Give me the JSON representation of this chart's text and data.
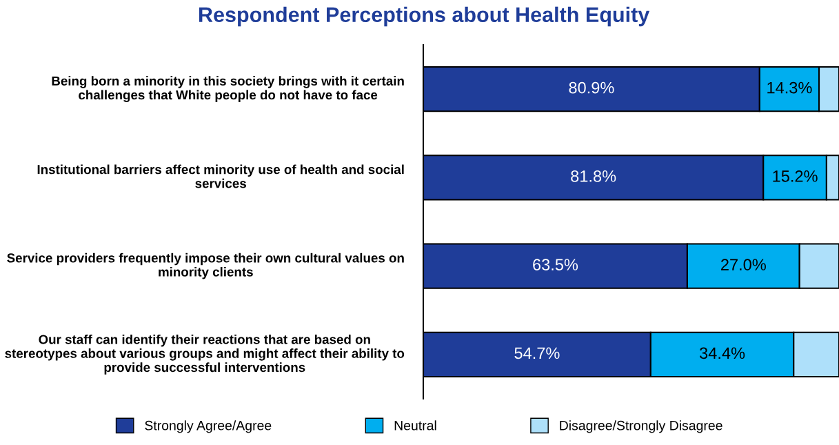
{
  "chart_data": {
    "type": "bar",
    "orientation": "horizontal",
    "stacked": true,
    "title": "Respondent Perceptions about Health Equity",
    "categories": [
      "Being born a minority in this society brings with it certain challenges that White people do not have to face",
      "Institutional barriers affect minority use of health and social services",
      "Service providers frequently impose their own cultural values on minority clients",
      "Our staff can identify their reactions that are based on stereotypes about various groups and might affect their ability to provide successful interventions"
    ],
    "series": [
      {
        "name": "Strongly Agree/Agree",
        "color": "#1f3d99",
        "values": [
          80.9,
          81.8,
          63.5,
          54.7
        ],
        "value_labels": [
          "80.9%",
          "81.8%",
          "63.5%",
          "54.7%"
        ]
      },
      {
        "name": "Neutral",
        "color": "#00aeef",
        "values": [
          14.3,
          15.2,
          27.0,
          34.4
        ],
        "value_labels": [
          "14.3%",
          "15.2%",
          "27.0%",
          "34.4%"
        ]
      },
      {
        "name": "Disagree/Strongly Disagree",
        "color": "#aee0fa",
        "values": [
          4.8,
          3.0,
          9.5,
          10.9
        ],
        "value_labels": [
          null,
          null,
          null,
          null
        ]
      }
    ],
    "xlim": [
      0,
      100
    ],
    "tick_labels": "y",
    "legend": "bottom",
    "grid": false
  }
}
